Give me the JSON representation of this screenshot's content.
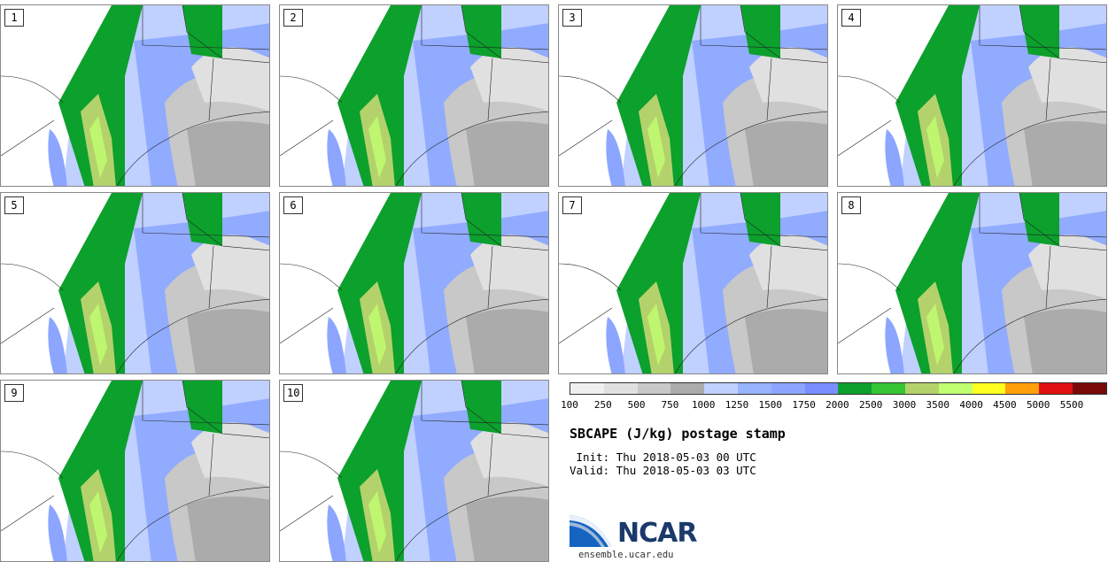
{
  "panels": [
    {
      "label": "1"
    },
    {
      "label": "2"
    },
    {
      "label": "3"
    },
    {
      "label": "4"
    },
    {
      "label": "5"
    },
    {
      "label": "6"
    },
    {
      "label": "7"
    },
    {
      "label": "8"
    },
    {
      "label": "9"
    },
    {
      "label": "10"
    }
  ],
  "colorbar": {
    "colors": [
      "#efefef",
      "#e0e0e0",
      "#c8c8c8",
      "#ababab",
      "#c0d0ff",
      "#98b3ff",
      "#8ca6ff",
      "#7a8fff",
      "#0ca02c",
      "#34c434",
      "#b4d26c",
      "#c0ff70",
      "#ffff20",
      "#ffa00a",
      "#e01010",
      "#780a0a"
    ],
    "tick_labels": [
      "100",
      "250",
      "500",
      "750",
      "1000",
      "1250",
      "1500",
      "1750",
      "2000",
      "2500",
      "3000",
      "3500",
      "4000",
      "4500",
      "5000",
      "5500"
    ]
  },
  "title": "SBCAPE (J/kg) postage stamp",
  "init": " Init: Thu 2018-05-03 00 UTC",
  "valid": "Valid: Thu 2018-05-03 03 UTC",
  "logo": {
    "word": "NCAR",
    "url": "ensemble.ucar.edu"
  }
}
